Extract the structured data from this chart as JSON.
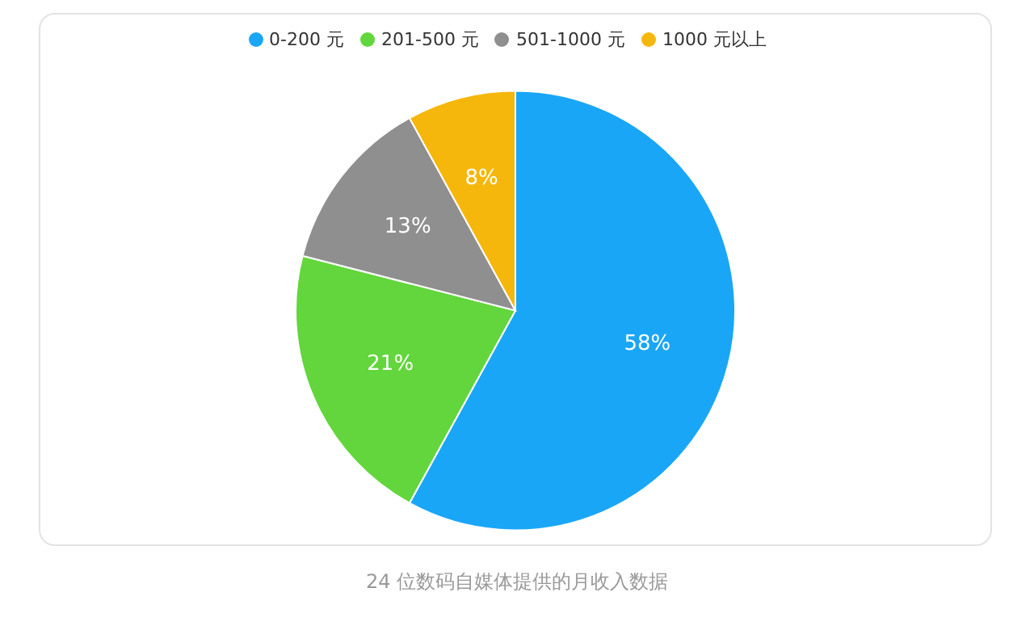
{
  "chart_data": {
    "type": "pie",
    "categories": [
      "0-200 元",
      "201-500 元",
      "501-1000 元",
      "1000 元以上"
    ],
    "values": [
      58,
      21,
      13,
      8
    ],
    "colors": [
      "#1aa6f7",
      "#62d63c",
      "#8f8f8f",
      "#f6b70c"
    ],
    "value_labels": [
      "58%",
      "21%",
      "13%",
      "8%"
    ],
    "legend": "top",
    "annotations": [
      "24 位数码自媒体提供的月收入数据"
    ]
  }
}
